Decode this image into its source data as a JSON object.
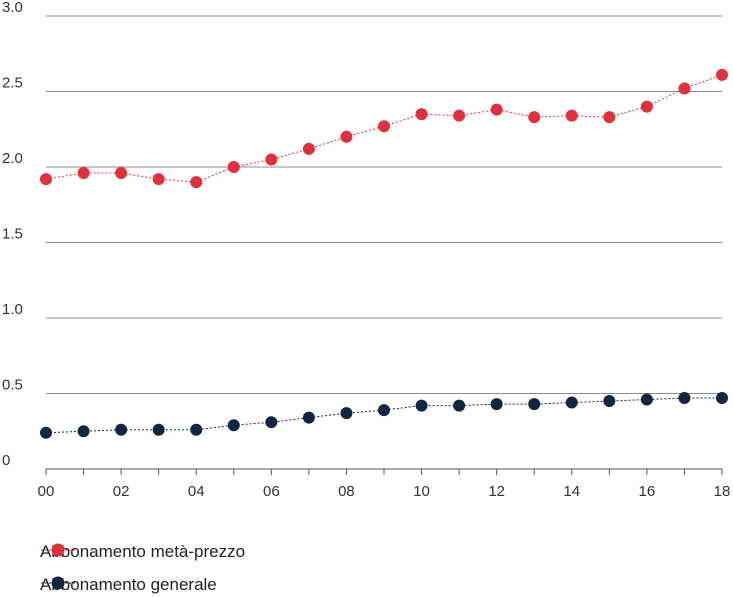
{
  "chart_data": {
    "type": "line",
    "x": [
      "00",
      "01",
      "02",
      "03",
      "04",
      "05",
      "06",
      "07",
      "08",
      "09",
      "10",
      "11",
      "12",
      "13",
      "14",
      "15",
      "16",
      "17",
      "18"
    ],
    "x_tick_labels": [
      "00",
      "02",
      "04",
      "06",
      "08",
      "10",
      "12",
      "14",
      "16",
      "18"
    ],
    "y_tick_labels": [
      "0",
      "0.5",
      "1.0",
      "1.5",
      "2.0",
      "2.5",
      "3.0"
    ],
    "ylim": [
      0,
      3
    ],
    "grid": "horizontal",
    "legend_position": "bottom-left",
    "series": [
      {
        "name": "Abbonamento metà-prezzo",
        "color": "#e0303c",
        "values": [
          1.92,
          1.96,
          1.96,
          1.92,
          1.9,
          2.0,
          2.05,
          2.12,
          2.2,
          2.27,
          2.35,
          2.34,
          2.38,
          2.33,
          2.34,
          2.33,
          2.4,
          2.52,
          2.61
        ]
      },
      {
        "name": "Abbonamento generale",
        "color": "#0f2740",
        "values": [
          0.24,
          0.25,
          0.26,
          0.26,
          0.26,
          0.29,
          0.31,
          0.34,
          0.37,
          0.39,
          0.42,
          0.42,
          0.43,
          0.43,
          0.44,
          0.45,
          0.46,
          0.47,
          0.47
        ]
      }
    ]
  }
}
